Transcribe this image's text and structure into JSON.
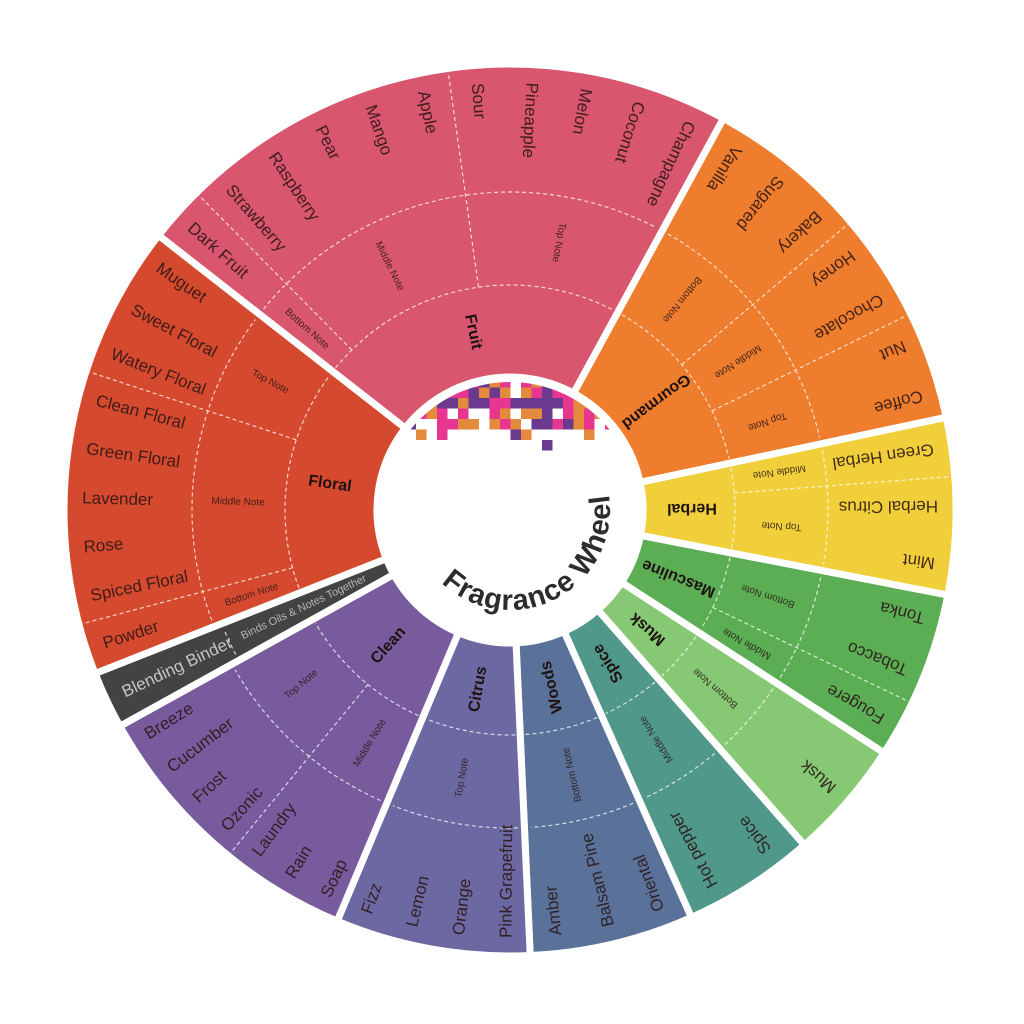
{
  "title": "Fragrance Wheel",
  "pixel_colors": [
    "#6b3a8e",
    "#e8358f",
    "#e38a3c"
  ],
  "sections": [
    {
      "name": "Fruit",
      "color": "#d9566f",
      "notes": [
        {
          "label": "Bottom Note",
          "items": [
            "Dark Fruit"
          ]
        },
        {
          "label": "Middle Note",
          "items": [
            "Strawberry",
            "Raspberry",
            "Pear",
            "Mango",
            "Apple"
          ]
        },
        {
          "label": "Top Note",
          "items": [
            "Sour",
            "Pineapple",
            "Melon",
            "Coconut",
            "Champagne"
          ]
        }
      ]
    },
    {
      "name": "Gourmand",
      "color": "#ee7d2d",
      "notes": [
        {
          "label": "Bottom Note",
          "items": [
            "Vanilla",
            "Sugared",
            "Bakery"
          ]
        },
        {
          "label": "Middle Note",
          "items": [
            "Honey",
            "Chocolate"
          ]
        },
        {
          "label": "Top Note",
          "items": [
            "Nut",
            "Coffee"
          ]
        }
      ]
    },
    {
      "name": "Herbal",
      "color": "#f0cf3b",
      "notes": [
        {
          "label": "Middle Note",
          "items": [
            "Green Herbal"
          ]
        },
        {
          "label": "Top Note",
          "items": [
            "Herbal Citrus",
            "Mint"
          ]
        }
      ]
    },
    {
      "name": "Masculine",
      "color": "#5cae55",
      "notes": [
        {
          "label": "Bottom Note",
          "items": [
            "Tonka",
            "Tobacco"
          ]
        },
        {
          "label": "Middle Note",
          "items": [
            "Fougere"
          ]
        }
      ]
    },
    {
      "name": "Musk",
      "color": "#86c873",
      "notes": [
        {
          "label": "Bottom Note",
          "items": [
            "Musk"
          ]
        }
      ]
    },
    {
      "name": "Spice",
      "color": "#4f988a",
      "notes": [
        {
          "label": "Middle Note",
          "items": [
            "Spice",
            "Hot pepper"
          ]
        }
      ]
    },
    {
      "name": "Woods",
      "color": "#5a7199",
      "notes": [
        {
          "label": "Bottom Note",
          "items": [
            "Oriental",
            "Balsam Pine",
            "Amber"
          ]
        }
      ]
    },
    {
      "name": "Citrus",
      "color": "#6c68a1",
      "notes": [
        {
          "label": "Top Note",
          "items": [
            "Pink Grapefruit",
            "Orange",
            "Lemon",
            "Fizz"
          ]
        }
      ]
    },
    {
      "name": "Clean",
      "color": "#785b9c",
      "notes": [
        {
          "label": "Middle Note",
          "items": [
            "Soap",
            "Rain",
            "Laundry"
          ]
        },
        {
          "label": "Top Note",
          "items": [
            "Ozonic",
            "Frost",
            "Cucumber",
            "Breeze"
          ]
        }
      ]
    },
    {
      "name": "",
      "color": "#424444",
      "notes": [
        {
          "label": "Binds Oils & Notes Together",
          "items": [
            "Blending Binder"
          ]
        }
      ]
    },
    {
      "name": "Floral",
      "color": "#d54a2e",
      "notes": [
        {
          "label": "Bottom Note",
          "items": [
            "Powder"
          ]
        },
        {
          "label": "Middle Note",
          "items": [
            "Spiced Floral",
            "Rose",
            "Lavender",
            "Green Floral",
            "Clean Floral"
          ]
        },
        {
          "label": "Top Note",
          "items": [
            "Watery Floral",
            "Sweet Floral",
            "Muguet"
          ]
        }
      ]
    }
  ]
}
